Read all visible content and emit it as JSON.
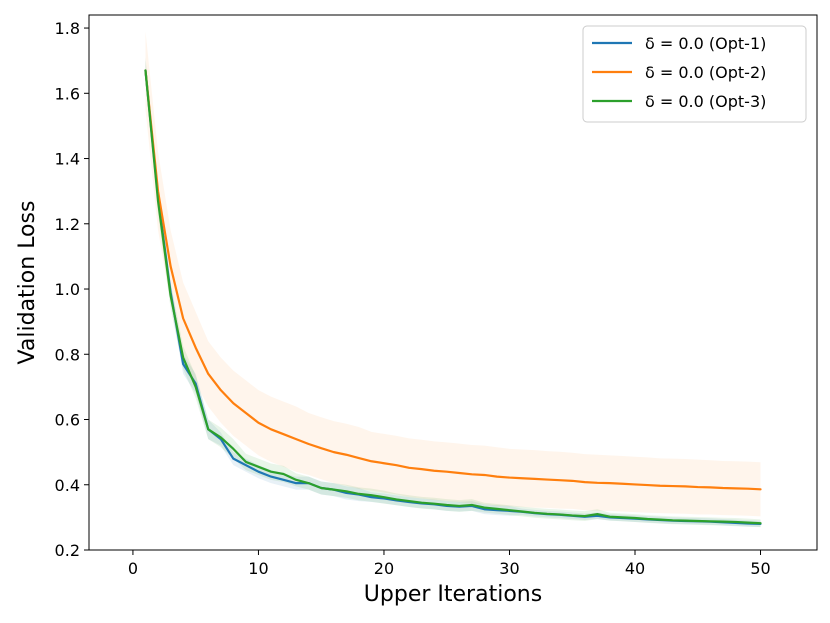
{
  "chart_data": {
    "type": "line",
    "title": "",
    "xlabel": "Upper Iterations",
    "ylabel": "Validation Loss",
    "xlim": [
      -3.5,
      54.5
    ],
    "ylim": [
      0.2,
      1.84
    ],
    "xticks": [
      0,
      10,
      20,
      30,
      40,
      50
    ],
    "yticks": [
      0.2,
      0.4,
      0.6,
      0.8,
      1.0,
      1.2,
      1.4,
      1.6,
      1.8
    ],
    "grid": false,
    "legend_position": "top-right",
    "x": [
      1,
      2,
      3,
      4,
      5,
      6,
      7,
      8,
      9,
      10,
      11,
      12,
      13,
      14,
      15,
      16,
      17,
      18,
      19,
      20,
      21,
      22,
      23,
      24,
      25,
      26,
      27,
      28,
      29,
      30,
      31,
      32,
      33,
      34,
      35,
      36,
      37,
      38,
      39,
      40,
      41,
      42,
      43,
      44,
      45,
      46,
      47,
      48,
      49,
      50
    ],
    "series": [
      {
        "name": "δ = 0.0 (Opt-1)",
        "color": "#1f77b4",
        "values": [
          1.67,
          1.28,
          0.99,
          0.77,
          0.71,
          0.57,
          0.54,
          0.48,
          0.46,
          0.44,
          0.425,
          0.415,
          0.405,
          0.405,
          0.39,
          0.385,
          0.375,
          0.37,
          0.362,
          0.358,
          0.352,
          0.347,
          0.343,
          0.34,
          0.335,
          0.333,
          0.335,
          0.325,
          0.322,
          0.32,
          0.317,
          0.313,
          0.31,
          0.308,
          0.305,
          0.302,
          0.305,
          0.3,
          0.298,
          0.296,
          0.294,
          0.292,
          0.29,
          0.289,
          0.288,
          0.287,
          0.285,
          0.283,
          0.281,
          0.28
        ],
        "band": [
          0.03,
          0.03,
          0.03,
          0.03,
          0.03,
          0.03,
          0.02,
          0.02,
          0.02,
          0.02,
          0.02,
          0.02,
          0.02,
          0.02,
          0.02,
          0.02,
          0.02,
          0.02,
          0.015,
          0.015,
          0.015,
          0.015,
          0.015,
          0.015,
          0.015,
          0.015,
          0.015,
          0.015,
          0.015,
          0.015,
          0.01,
          0.01,
          0.01,
          0.01,
          0.01,
          0.01,
          0.01,
          0.01,
          0.01,
          0.01,
          0.01,
          0.01,
          0.01,
          0.01,
          0.01,
          0.01,
          0.01,
          0.01,
          0.01,
          0.01
        ]
      },
      {
        "name": "δ = 0.0 (Opt-2)",
        "color": "#ff7f0e",
        "values": [
          1.67,
          1.3,
          1.07,
          0.91,
          0.82,
          0.74,
          0.69,
          0.65,
          0.62,
          0.59,
          0.57,
          0.555,
          0.54,
          0.525,
          0.512,
          0.5,
          0.492,
          0.482,
          0.472,
          0.466,
          0.46,
          0.452,
          0.448,
          0.443,
          0.44,
          0.436,
          0.432,
          0.43,
          0.425,
          0.422,
          0.42,
          0.418,
          0.416,
          0.414,
          0.412,
          0.408,
          0.406,
          0.405,
          0.403,
          0.401,
          0.399,
          0.397,
          0.396,
          0.395,
          0.393,
          0.392,
          0.39,
          0.389,
          0.388,
          0.386
        ],
        "band": [
          0.12,
          0.12,
          0.11,
          0.11,
          0.11,
          0.1,
          0.1,
          0.1,
          0.1,
          0.1,
          0.1,
          0.1,
          0.1,
          0.095,
          0.095,
          0.095,
          0.095,
          0.095,
          0.09,
          0.09,
          0.09,
          0.09,
          0.09,
          0.09,
          0.09,
          0.09,
          0.09,
          0.09,
          0.09,
          0.088,
          0.088,
          0.088,
          0.087,
          0.087,
          0.086,
          0.086,
          0.086,
          0.085,
          0.085,
          0.085,
          0.085,
          0.084,
          0.084,
          0.084,
          0.084,
          0.083,
          0.083,
          0.083,
          0.083,
          0.083
        ]
      },
      {
        "name": "δ = 0.0 (Opt-3)",
        "color": "#2ca02c",
        "values": [
          1.67,
          1.27,
          0.98,
          0.79,
          0.7,
          0.57,
          0.545,
          0.51,
          0.47,
          0.455,
          0.44,
          0.433,
          0.415,
          0.405,
          0.39,
          0.385,
          0.38,
          0.372,
          0.368,
          0.362,
          0.355,
          0.35,
          0.345,
          0.342,
          0.338,
          0.335,
          0.338,
          0.33,
          0.326,
          0.322,
          0.318,
          0.314,
          0.311,
          0.309,
          0.306,
          0.304,
          0.31,
          0.302,
          0.3,
          0.298,
          0.295,
          0.293,
          0.291,
          0.29,
          0.289,
          0.288,
          0.287,
          0.286,
          0.284,
          0.282
        ],
        "band": [
          0.04,
          0.04,
          0.04,
          0.035,
          0.035,
          0.03,
          0.03,
          0.03,
          0.025,
          0.025,
          0.025,
          0.025,
          0.02,
          0.02,
          0.02,
          0.02,
          0.02,
          0.02,
          0.02,
          0.02,
          0.018,
          0.018,
          0.018,
          0.018,
          0.018,
          0.018,
          0.018,
          0.015,
          0.015,
          0.015,
          0.015,
          0.015,
          0.015,
          0.015,
          0.015,
          0.015,
          0.015,
          0.012,
          0.012,
          0.012,
          0.012,
          0.012,
          0.012,
          0.012,
          0.012,
          0.012,
          0.012,
          0.012,
          0.012,
          0.012
        ]
      }
    ]
  }
}
